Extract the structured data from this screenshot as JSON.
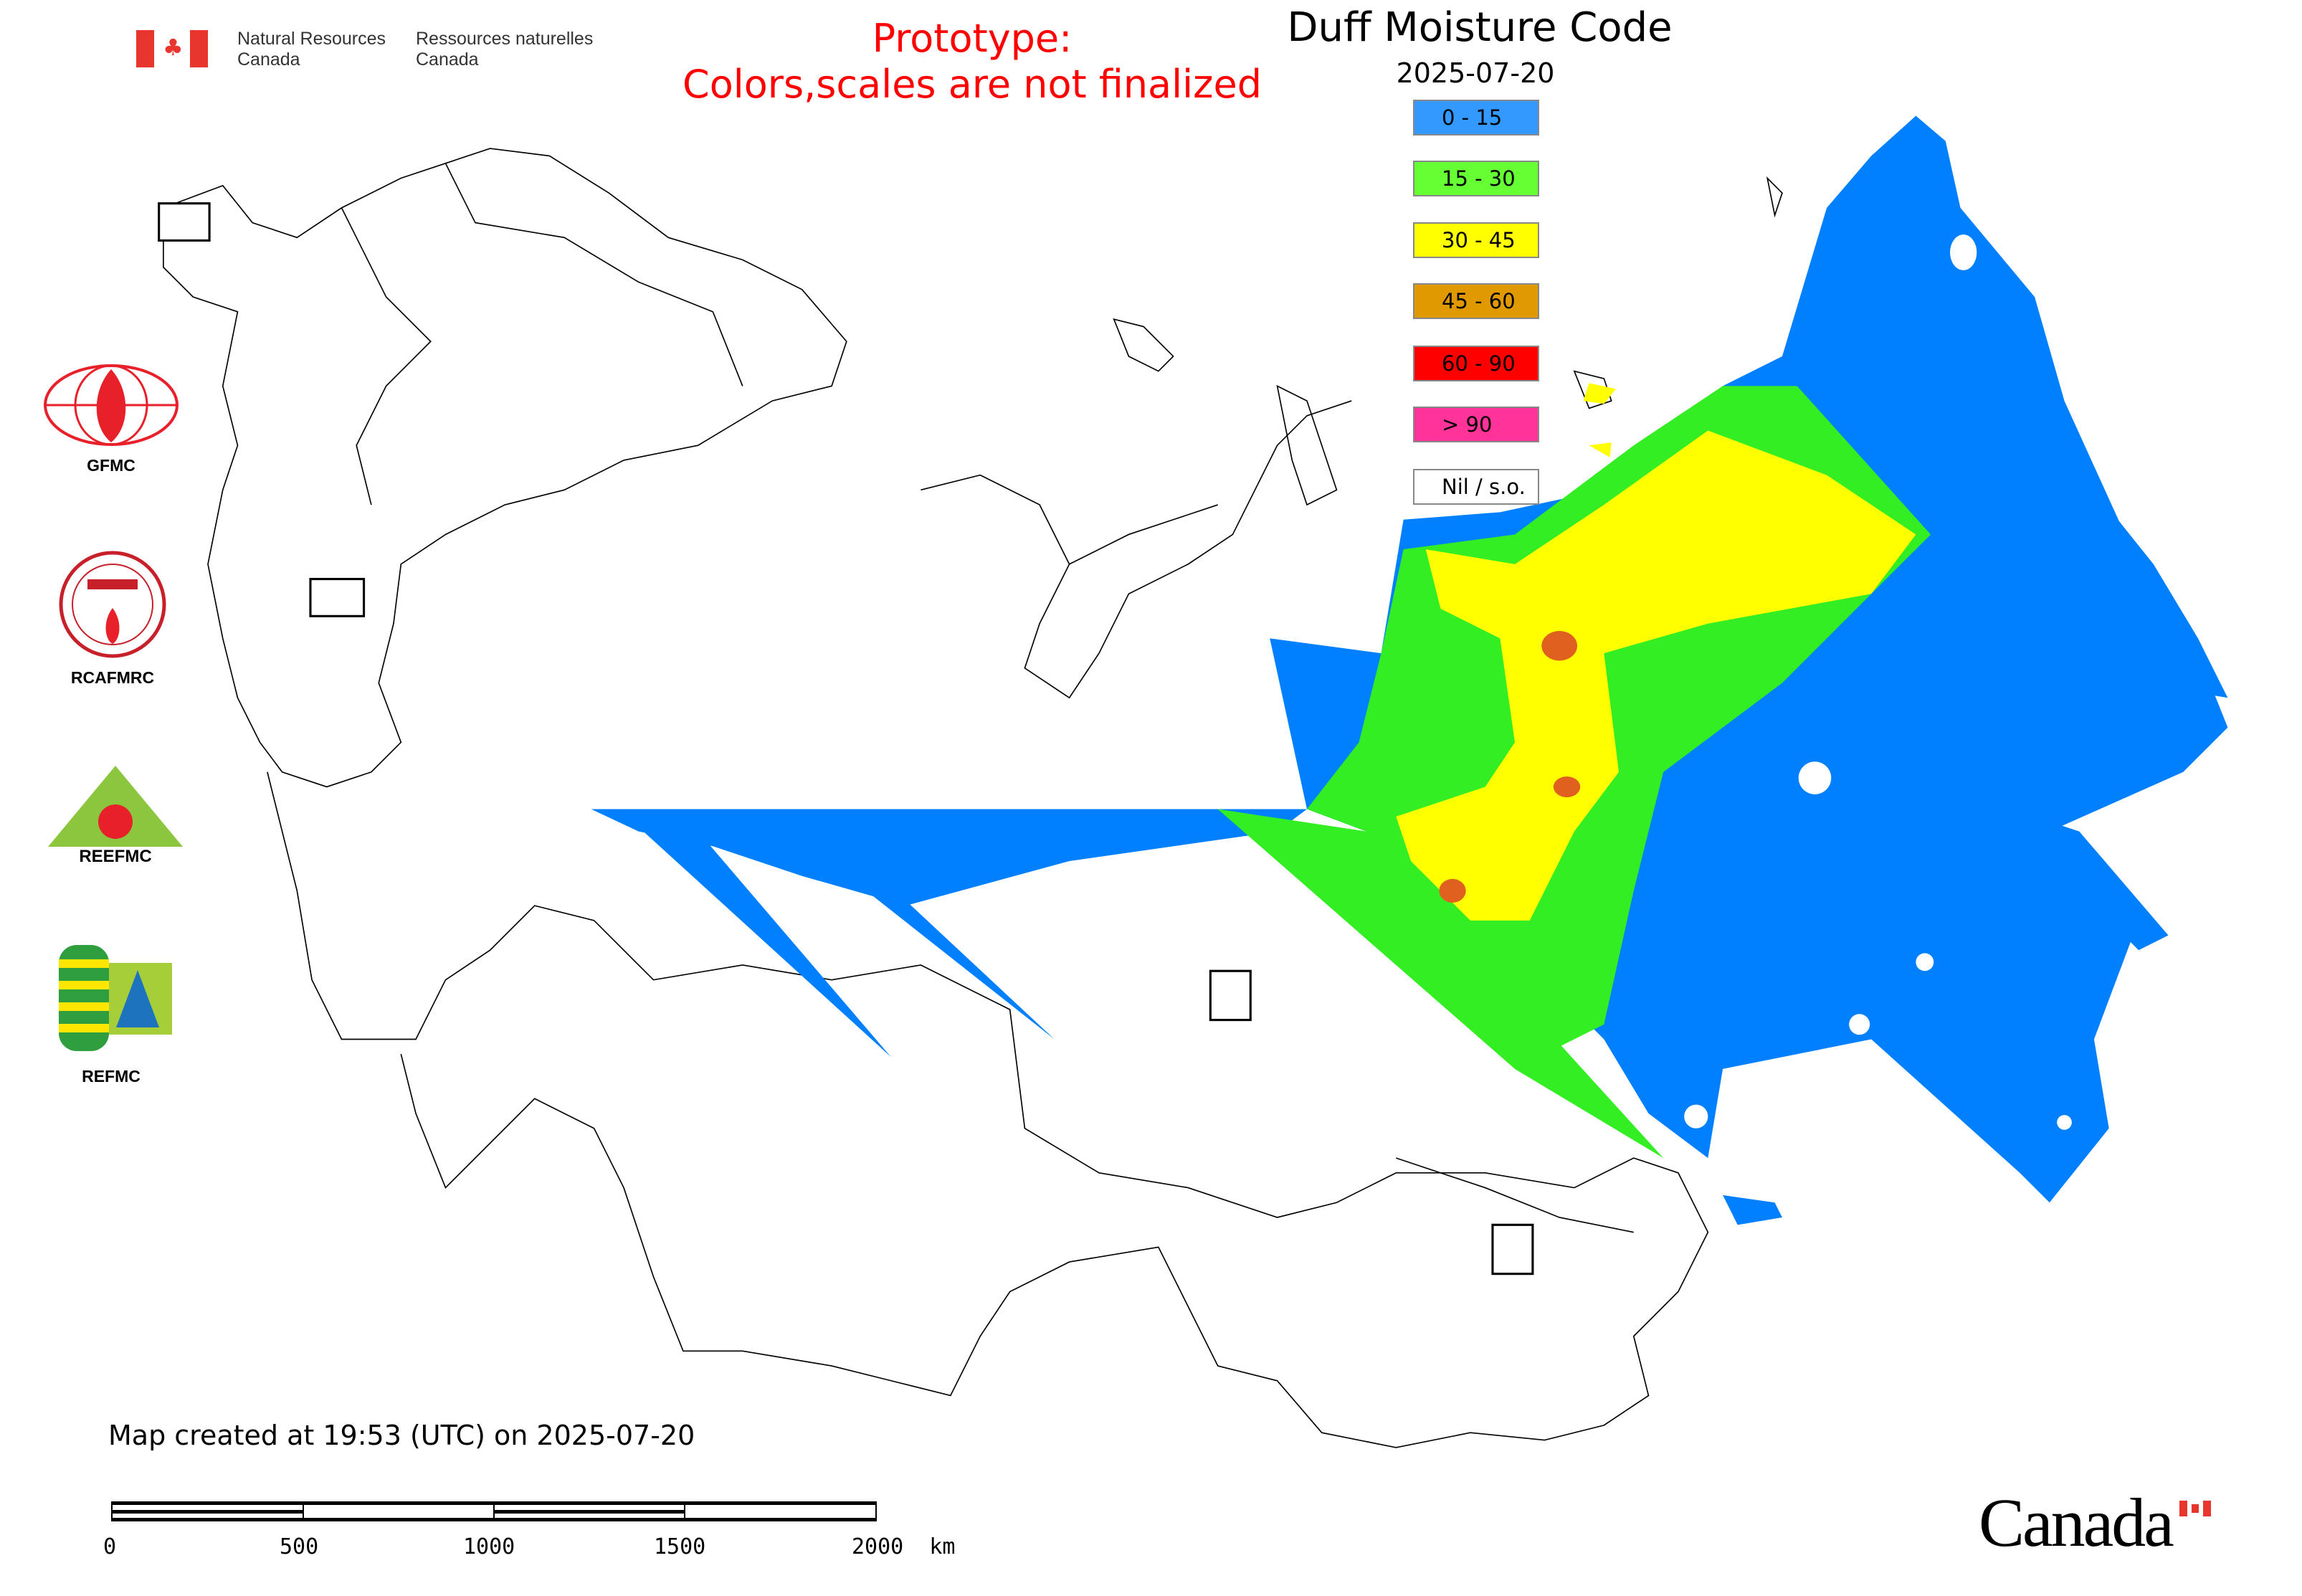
{
  "header": {
    "agency_en": [
      "Natural Resources",
      "Canada"
    ],
    "agency_fr": [
      "Ressources naturelles",
      "Canada"
    ],
    "prototype_notice": [
      "Prototype:",
      "Colors,scales are not finalized"
    ],
    "prototype_color": "#ff0000"
  },
  "legend": {
    "title": "Duff Moisture Code",
    "date": "2025-07-20",
    "classes": [
      {
        "label": "0 - 15",
        "color": "#3399ff"
      },
      {
        "label": "15 - 30",
        "color": "#66ff33"
      },
      {
        "label": "30 - 45",
        "color": "#ffff00"
      },
      {
        "label": "45 - 60",
        "color": "#e09900"
      },
      {
        "label": "60 - 90",
        "color": "#ff0000"
      },
      {
        "label": "> 90",
        "color": "#ff3399"
      },
      {
        "label": "Nil / s.o.",
        "color": "#ffffff"
      }
    ]
  },
  "partner_logos": [
    {
      "label": "GFMC",
      "icon": "gfmc-logo"
    },
    {
      "label": "RCAFMRC",
      "icon": "rcafmrc-logo"
    },
    {
      "label": "REEFMC",
      "icon": "reefmc-logo"
    },
    {
      "label": "REFMC",
      "icon": "refmc-logo"
    }
  ],
  "footer": {
    "created_text": "Map created at 19:53 (UTC) on 2025-07-20",
    "scale_labels": [
      "0",
      "500",
      "1000",
      "1500",
      "2000  km"
    ],
    "wordmark": "Canada"
  }
}
